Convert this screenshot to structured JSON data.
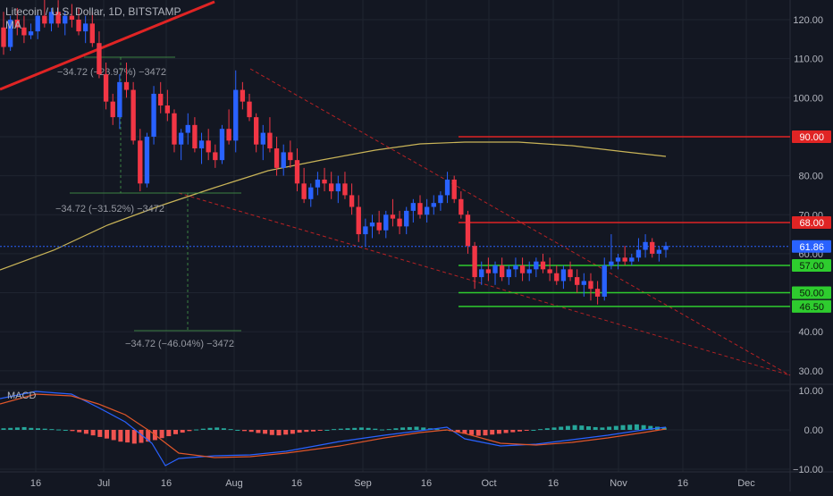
{
  "header": {
    "title": "Litecoin / U.S. Dollar, 1D, BITSTAMP",
    "indicator": "MA"
  },
  "macd": {
    "label": "MACD"
  },
  "colors": {
    "background": "#131722",
    "grid": "#1f2430",
    "up": "#2962ff",
    "down": "#f23645",
    "bull_wick": "#5b7cff",
    "ma": "#c9b458",
    "red_level": "#e02424",
    "green_level": "#2ecc2e",
    "price_line": "#2962ff",
    "macd_line": "#2962ff",
    "signal_line": "#e0562a",
    "hist_pos": "#26a69a",
    "hist_neg": "#ef5350",
    "axis_text": "#b2b5be"
  },
  "chart_data": {
    "type": "candlestick",
    "y_axis": {
      "ticks": [
        "120.00",
        "110.00",
        "100.00",
        "90.00",
        "80.00",
        "70.00",
        "60.00",
        "50.00",
        "40.00",
        "30.00"
      ],
      "range": [
        27.5,
        125
      ]
    },
    "x_axis": {
      "ticks": [
        "16",
        "Jul",
        "16",
        "Aug",
        "16",
        "Sep",
        "16",
        "Oct",
        "16",
        "Nov",
        "16",
        "Dec"
      ]
    },
    "price_labels": [
      {
        "value": 90.0,
        "text": "90.00",
        "color": "red"
      },
      {
        "value": 68.0,
        "text": "68.00",
        "color": "red"
      },
      {
        "value": 61.86,
        "text": "61.86",
        "color": "blue"
      },
      {
        "value": 57.0,
        "text": "57.00",
        "color": "green"
      },
      {
        "value": 50.0,
        "text": "50.00",
        "color": "green"
      },
      {
        "value": 46.5,
        "text": "46.50",
        "color": "green"
      }
    ],
    "measure_annotations": [
      "−34.72 (−23.97%) −3472",
      "−34.72 (−31.52%) −3472",
      "−34.72 (−46.04%) −3472"
    ],
    "macd_axis": {
      "ticks": [
        "10.00",
        "0.00",
        "−10.00"
      ],
      "range": [
        -11,
        11
      ]
    },
    "candles_ohlc": [
      [
        118,
        122,
        111,
        113
      ],
      [
        113,
        121,
        112,
        120
      ],
      [
        120,
        123,
        116,
        118
      ],
      [
        118,
        121,
        114,
        116
      ],
      [
        116,
        119,
        115,
        117
      ],
      [
        117,
        122,
        115,
        121
      ],
      [
        121,
        126,
        118,
        119
      ],
      [
        119,
        123,
        117,
        122
      ],
      [
        122,
        125,
        118,
        119
      ],
      [
        119,
        122,
        116,
        121
      ],
      [
        121,
        124,
        118,
        120
      ],
      [
        120,
        123,
        116,
        117
      ],
      [
        117,
        121,
        114,
        119
      ],
      [
        119,
        122,
        113,
        114
      ],
      [
        114,
        117,
        105,
        106
      ],
      [
        106,
        109,
        97,
        99
      ],
      [
        99,
        101,
        93,
        95
      ],
      [
        95,
        106,
        92,
        104
      ],
      [
        104,
        109,
        100,
        102
      ],
      [
        102,
        104,
        88,
        89
      ],
      [
        89,
        92,
        76,
        78
      ],
      [
        78,
        91,
        77,
        90
      ],
      [
        90,
        103,
        88,
        101
      ],
      [
        101,
        104,
        96,
        98
      ],
      [
        98,
        102,
        94,
        96
      ],
      [
        96,
        97,
        86,
        88
      ],
      [
        88,
        92,
        84,
        91
      ],
      [
        91,
        96,
        88,
        93
      ],
      [
        93,
        95,
        86,
        87
      ],
      [
        87,
        91,
        83,
        89
      ],
      [
        89,
        92,
        84,
        86
      ],
      [
        86,
        88,
        82,
        84
      ],
      [
        84,
        93,
        83,
        92
      ],
      [
        92,
        97,
        88,
        89
      ],
      [
        89,
        107,
        86,
        102
      ],
      [
        102,
        104,
        97,
        99
      ],
      [
        99,
        101,
        94,
        95
      ],
      [
        95,
        96,
        86,
        88
      ],
      [
        88,
        93,
        84,
        91
      ],
      [
        91,
        95,
        86,
        87
      ],
      [
        87,
        90,
        80,
        82
      ],
      [
        82,
        88,
        80,
        86
      ],
      [
        86,
        89,
        82,
        84
      ],
      [
        84,
        87,
        76,
        78
      ],
      [
        78,
        82,
        73,
        74
      ],
      [
        74,
        78,
        72,
        77
      ],
      [
        77,
        81,
        75,
        79
      ],
      [
        79,
        82,
        76,
        78
      ],
      [
        78,
        81,
        74,
        76
      ],
      [
        76,
        80,
        73,
        78
      ],
      [
        78,
        81,
        74,
        75
      ],
      [
        75,
        78,
        70,
        72
      ],
      [
        72,
        75,
        63,
        65
      ],
      [
        65,
        69,
        62,
        67
      ],
      [
        67,
        70,
        64,
        68
      ],
      [
        68,
        71,
        65,
        66
      ],
      [
        66,
        71,
        64,
        70
      ],
      [
        70,
        74,
        67,
        69
      ],
      [
        69,
        71,
        65,
        67
      ],
      [
        67,
        72,
        65,
        71
      ],
      [
        71,
        74,
        68,
        73
      ],
      [
        73,
        75,
        69,
        70
      ],
      [
        70,
        74,
        68,
        72
      ],
      [
        72,
        75,
        70,
        73
      ],
      [
        73,
        76,
        71,
        75
      ],
      [
        75,
        81,
        73,
        79
      ],
      [
        79,
        80,
        73,
        74
      ],
      [
        74,
        76,
        69,
        70
      ],
      [
        70,
        71,
        60,
        62
      ],
      [
        62,
        63,
        51,
        54
      ],
      [
        54,
        58,
        52,
        56
      ],
      [
        56,
        59,
        53,
        55
      ],
      [
        55,
        58,
        52,
        57
      ],
      [
        57,
        59,
        53,
        54
      ],
      [
        54,
        57,
        52,
        56
      ],
      [
        56,
        59,
        54,
        57
      ],
      [
        57,
        59,
        53,
        55
      ],
      [
        55,
        58,
        53,
        56
      ],
      [
        56,
        59,
        54,
        58
      ],
      [
        58,
        60,
        55,
        56
      ],
      [
        56,
        59,
        53,
        55
      ],
      [
        55,
        57,
        52,
        53
      ],
      [
        53,
        57,
        51,
        56
      ],
      [
        56,
        58,
        53,
        54
      ],
      [
        54,
        56,
        50,
        52
      ],
      [
        52,
        55,
        49,
        53
      ],
      [
        53,
        55,
        48,
        51
      ],
      [
        51,
        53,
        47,
        49
      ],
      [
        49,
        59,
        48,
        57
      ],
      [
        57,
        65,
        56,
        58
      ],
      [
        58,
        60,
        56,
        59
      ],
      [
        59,
        62,
        57,
        58
      ],
      [
        58,
        60,
        57,
        59
      ],
      [
        59,
        64,
        58,
        61
      ],
      [
        61,
        65,
        59,
        63
      ],
      [
        63,
        64,
        59,
        60
      ],
      [
        60,
        62,
        58,
        61
      ],
      [
        61,
        63,
        59,
        62
      ]
    ]
  }
}
